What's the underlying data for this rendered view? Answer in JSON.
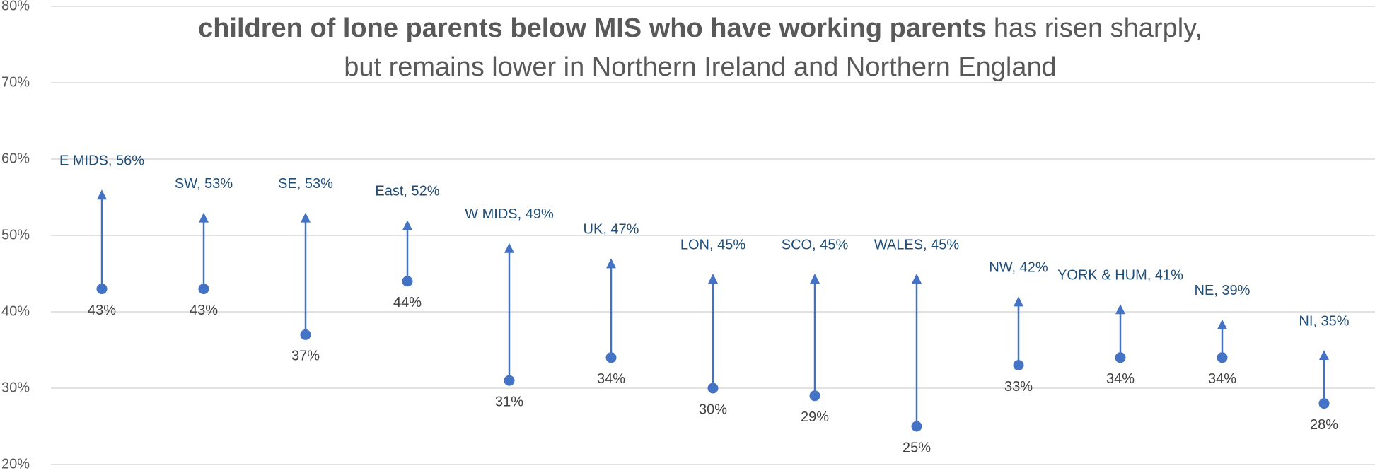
{
  "chart_data": {
    "type": "arrow",
    "title_bold": "children of lone parents below MIS who have working parents",
    "title_rest": "has risen sharply,",
    "subtitle": "but remains lower in Northern Ireland and Northern England",
    "ylim": [
      20,
      80
    ],
    "yticks": [
      {
        "value": 20,
        "label": "20%"
      },
      {
        "value": 30,
        "label": "30%"
      },
      {
        "value": 40,
        "label": "40%"
      },
      {
        "value": 50,
        "label": "50%"
      },
      {
        "value": 60,
        "label": "60%"
      },
      {
        "value": 70,
        "label": "70%"
      },
      {
        "value": 80,
        "label": "80%"
      }
    ],
    "grid": true,
    "series": [
      {
        "color": "#4472c4",
        "values": [
          43,
          43,
          37,
          44,
          31,
          34,
          30,
          29,
          25,
          33,
          34,
          34,
          28
        ],
        "value_labels": [
          "43%",
          "43%",
          "37%",
          "44%",
          "31%",
          "34%",
          "30%",
          "29%",
          "25%",
          "33%",
          "34%",
          "34%",
          "28%"
        ]
      },
      {
        "color": "#4472c4",
        "values": [
          56,
          53,
          53,
          52,
          49,
          47,
          45,
          45,
          45,
          42,
          41,
          39,
          35
        ],
        "value_labels": [
          "E MIDS, 56%",
          "SW, 53%",
          "SE, 53%",
          "East, 52%",
          "W MIDS, 49%",
          "UK, 47%",
          "LON, 45%",
          "SCO, 45%",
          "WALES, 45%",
          "NW, 42%",
          "YORK & HUM, 41%",
          "NE, 39%",
          "NI, 35%"
        ]
      }
    ]
  }
}
